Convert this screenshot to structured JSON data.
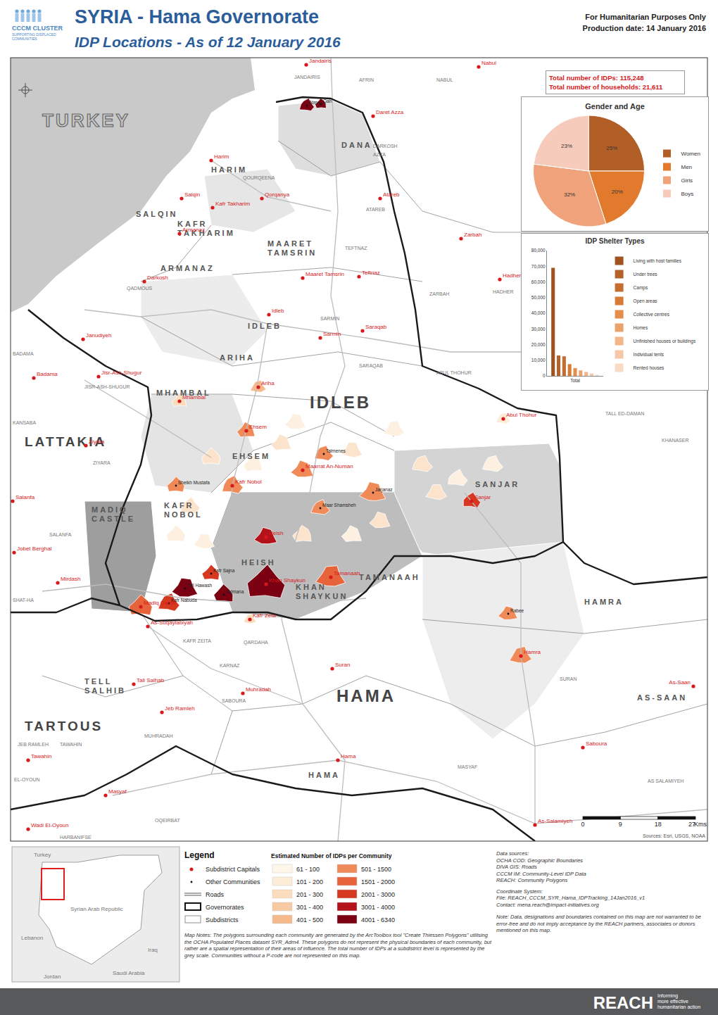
{
  "header": {
    "title": "SYRIA - Hama Governorate",
    "subtitle": "IDP Locations - As of 12 January 2016",
    "note": "For Humanitarian Purposes Only",
    "production_date": "Production date: 14 January 2016",
    "logo": [
      "CCCM CLUSTER",
      "SUPPORTING DISPLACED",
      "COMMUNITIES"
    ]
  },
  "totals": [
    "Total number of IDPs: 115,248",
    "Total number of households: 21,611"
  ],
  "chart_data": [
    {
      "type": "pie",
      "title": "Gender and Age",
      "categories": [
        "Women",
        "Men",
        "Girls",
        "Boys"
      ],
      "values": [
        25,
        20,
        32,
        23
      ],
      "value_labels": [
        "25%",
        "20%",
        "32%",
        "23%"
      ],
      "colors": [
        "#b25f27",
        "#e27a2d",
        "#f0a27a",
        "#f7cbbb"
      ],
      "legend": "right"
    },
    {
      "type": "bar",
      "title": "IDP Shelter Types",
      "categories": [
        "Total"
      ],
      "series": [
        {
          "name": "Living with host families",
          "color": "#a0521f",
          "values": [
            69000
          ]
        },
        {
          "name": "Under trees",
          "color": "#b5612a",
          "values": [
            13000
          ]
        },
        {
          "name": "Camps",
          "color": "#c46d30",
          "values": [
            12500
          ]
        },
        {
          "name": "Open areas",
          "color": "#d57b36",
          "values": [
            7500
          ]
        },
        {
          "name": "Collective centres",
          "color": "#e48e4c",
          "values": [
            5000
          ]
        },
        {
          "name": "Homes",
          "color": "#eca26d",
          "values": [
            3500
          ]
        },
        {
          "name": "Unfinished houses or buildings",
          "color": "#f2b68b",
          "values": [
            2500
          ]
        },
        {
          "name": "Individual tents",
          "color": "#f6c8a8",
          "values": [
            1500
          ]
        },
        {
          "name": "Rented houses",
          "color": "#f9dac4",
          "values": [
            700
          ]
        }
      ],
      "ylim": [
        0,
        80000
      ],
      "yticks": [
        0,
        {
          "value": 10000,
          "label": "10,000"
        },
        {
          "value": 20000,
          "label": "20,000"
        },
        {
          "value": 30000,
          "label": "30,000"
        },
        {
          "value": 40000,
          "label": "40,000"
        },
        {
          "value": 50000,
          "label": "50,000"
        },
        {
          "value": 60000,
          "label": "60,000"
        },
        {
          "value": 70000,
          "label": "70,000"
        },
        {
          "value": 80000,
          "label": "80,000"
        }
      ],
      "grid": false,
      "legend": "right"
    }
  ],
  "map": {
    "governorates": [
      "TURKEY",
      "IDLEB",
      "LATTAKIA",
      "HAMA",
      "TARTOUS"
    ],
    "subdistricts": [
      "DANA",
      "HARIM",
      "SALQIN",
      "KAFR TAKHARIM",
      "MAARET TAMSRIN",
      "ARMANAZ",
      "IDLEB",
      "ARIHA",
      "MHAMBAL",
      "EHSEM",
      "KAFR NOBOL",
      "MADIQ CASTLE",
      "HEISH",
      "KHAN SHAYKUN",
      "TAMANAAH",
      "SANJAR",
      "HAMRA",
      "TELL SALHIB",
      "AS-SAAN",
      "HAMA"
    ],
    "other_subdistricts": [
      "JANDAIRIS",
      "AFRIN",
      "NABUL",
      "ATAREB",
      "TEFTNAZ",
      "ZARBAH",
      "HADHER",
      "SARMIN",
      "SARAQAB",
      "ABUL THOHUR",
      "TALL ED-DAMAN",
      "KHANASER",
      "JISR-ASH-SHUGUR",
      "BADAMA",
      "KANSABA",
      "ZIYARA",
      "SALANFA",
      "SHAT-HA",
      "QARDAHA",
      "KAFR ZEITA",
      "KARNAZ",
      "SURAN",
      "SABOURA",
      "MUHRADAH",
      "JEB RAMLEH",
      "TAWAHIN",
      "MASYAF",
      "AS SALAMIYEH",
      "OQEIRBAT",
      "HARBANIFSE",
      "EL-OYOUN",
      "QADMOUS",
      "DARKOSH",
      "QOURQEENA",
      "AZZA"
    ],
    "capitals": [
      {
        "name": "Jandairis"
      },
      {
        "name": "Nabul"
      },
      {
        "name": "Daret Azza"
      },
      {
        "name": "Harim"
      },
      {
        "name": "Salqin"
      },
      {
        "name": "Qorqanya"
      },
      {
        "name": "Atareb"
      },
      {
        "name": "Kafr Takharim"
      },
      {
        "name": "Armanaz"
      },
      {
        "name": "Zarbah"
      },
      {
        "name": "Darkosh"
      },
      {
        "name": "Maaret Tamsrin"
      },
      {
        "name": "Teftnaz"
      },
      {
        "name": "Hadher"
      },
      {
        "name": "Idleb"
      },
      {
        "name": "Sarmin"
      },
      {
        "name": "Saraqab"
      },
      {
        "name": "Janudiyeh"
      },
      {
        "name": "Badama"
      },
      {
        "name": "Jisr-Ash-Shugur"
      },
      {
        "name": "Ariha",
        "idps": 450
      },
      {
        "name": "Mhambal",
        "idps": 300
      },
      {
        "name": "Abul Thohur",
        "idps": 150
      },
      {
        "name": "Ehsem",
        "idps": 1100
      },
      {
        "name": "Ziyara"
      },
      {
        "name": "Salanfa"
      },
      {
        "name": "Kafr Nobol",
        "idps": 1200
      },
      {
        "name": "Maarrat An-Numan",
        "idps": 1000
      },
      {
        "name": "Sanjar",
        "idps": 2200
      },
      {
        "name": "Heish",
        "idps": 3200
      },
      {
        "name": "Jobet Berghal"
      },
      {
        "name": "Mirdash"
      },
      {
        "name": "Khan Shaykun",
        "idps": 6000
      },
      {
        "name": "Tamanaah",
        "idps": 1700
      },
      {
        "name": "Madiq Castle",
        "idps": 1800
      },
      {
        "name": "Kafr Zeta",
        "idps": 250
      },
      {
        "name": "As-Suqaylabiyah"
      },
      {
        "name": "Hamra",
        "idps": 900
      },
      {
        "name": "Suran"
      },
      {
        "name": "Tall Salhab"
      },
      {
        "name": "Muhradah"
      },
      {
        "name": "As-Saan"
      },
      {
        "name": "Jeb Ramleh"
      },
      {
        "name": "Saboura"
      },
      {
        "name": "Tawahin"
      },
      {
        "name": "Hama"
      },
      {
        "name": "Masyaf"
      },
      {
        "name": "As-Salamiyeh"
      },
      {
        "name": "Wadi El-Oyoun"
      }
    ],
    "communities": [
      {
        "name": "Atma",
        "idps": 5500
      },
      {
        "name": "Qah",
        "idps": 4200
      },
      {
        "name": "Tell Hawash",
        "idps": 4500
      },
      {
        "name": "Kafr Nabuda",
        "idps": 2500
      },
      {
        "name": "Latmana",
        "idps": 5000
      },
      {
        "name": "Jarjanaz",
        "idps": 800
      },
      {
        "name": "Talmenes",
        "idps": 1500
      },
      {
        "name": "Kafr Sajna",
        "idps": 2800
      },
      {
        "name": "Rabee",
        "idps": 1000
      },
      {
        "name": "Maar Shamsheh",
        "idps": 1200
      },
      {
        "name": "Sheikh Mustafa",
        "idps": 600
      }
    ],
    "scale": {
      "ticks": [
        0,
        9,
        18,
        27
      ],
      "unit": "Kms"
    },
    "sources": "Sources: Esri, USGS, NOAA"
  },
  "legend": {
    "title": "Legend",
    "symbols": [
      "Subdistrict Capitals",
      "Other Communities",
      "Roads",
      "Governorates",
      "Subdistricts"
    ],
    "classes_title": "Estimated Number of IDPs per Community",
    "classes": [
      {
        "label": "61 - 100",
        "min": 61,
        "max": 100,
        "color": "#fff6ea"
      },
      {
        "label": "101 - 200",
        "min": 101,
        "max": 200,
        "color": "#fdecd6"
      },
      {
        "label": "201 - 300",
        "min": 201,
        "max": 300,
        "color": "#fbdcbd"
      },
      {
        "label": "301 - 400",
        "min": 301,
        "max": 400,
        "color": "#f8caa2"
      },
      {
        "label": "401 - 500",
        "min": 401,
        "max": 500,
        "color": "#f5b98b"
      },
      {
        "label": "501 - 1500",
        "min": 501,
        "max": 1500,
        "color": "#f08a58"
      },
      {
        "label": "1501 - 2000",
        "min": 1501,
        "max": 2000,
        "color": "#e6633b"
      },
      {
        "label": "2001 - 3000",
        "min": 2001,
        "max": 3000,
        "color": "#d6391f"
      },
      {
        "label": "3001 - 4000",
        "min": 3001,
        "max": 4000,
        "color": "#b3121b"
      },
      {
        "label": "4001 - 6340",
        "min": 4001,
        "max": 6340,
        "color": "#7a0012"
      }
    ],
    "note": "Map Notes: The polygons surrounding each community are generated by the ArcToolbox tool \"Create Thiessen Polygons\" utilising the OCHA Populated Places dataset SYR_Adm4. These polygons do not represent the physical boundaries of each community, but rather are a spatial representation of their areas of influence. The total number of IDPs at a subdistrict level is represented by the grey scale. Communities without a P-code are not represented on this map."
  },
  "data_sources": [
    "Data sources:",
    "OCHA COD: Geographic Boundaries",
    "DIVA GIS: Roads",
    "CCCM IM: Community-Level IDP Data",
    "REACH: Community Polygons"
  ],
  "coordinate_system": [
    "Coordinate System:",
    "File: REACH_CCCM_SYR_Hama_IDPTracking_14Jan2016_v1",
    "Contact: mena.reach@impact-initiatives.org"
  ],
  "disclaimer": "Note: Data, designations and boundaries contained on this map are not warranted to be error-free and do not imply acceptance by the REACH partners, associates or donors mentioned on this map.",
  "inset": [
    "Turkey",
    "Syrian Arab Republic",
    "Lebanon",
    "Iraq",
    "Jordan",
    "Saudi Arabia"
  ],
  "footer": {
    "brand": "REACH",
    "tagline": [
      "Informing",
      "more effective",
      "humanitarian action"
    ]
  }
}
